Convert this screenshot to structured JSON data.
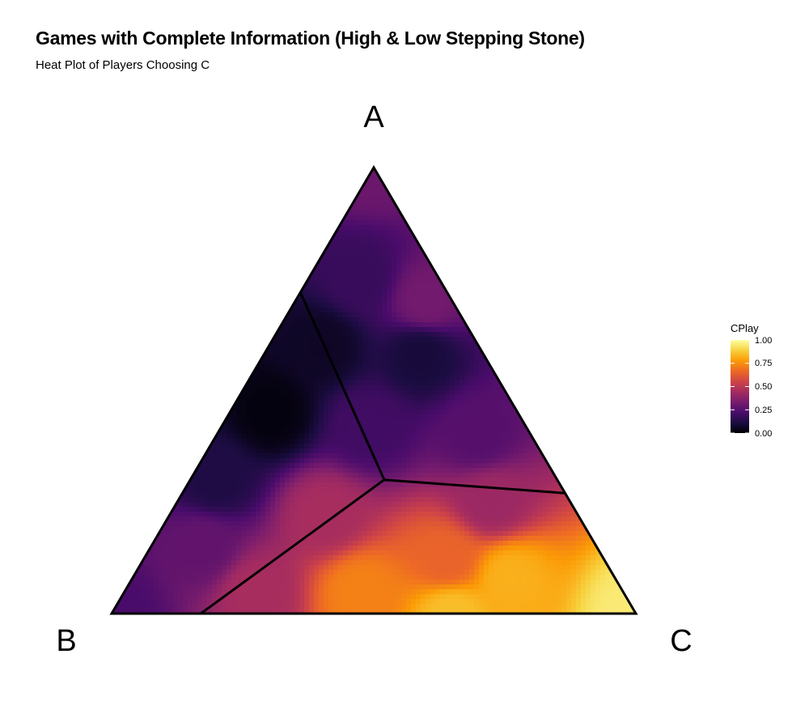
{
  "title": "Games with Complete Information (High & Low Stepping Stone)",
  "subtitle": "Heat Plot of Players Choosing C",
  "chart_data": {
    "type": "heatmap",
    "subtype": "ternary",
    "vertices": [
      "A",
      "B",
      "C"
    ],
    "legend": {
      "title": "CPlay",
      "ticks": [
        "1.00",
        "0.75",
        "0.50",
        "0.25",
        "0.00"
      ],
      "range": [
        0,
        1
      ],
      "colormap": "inferno",
      "placement": "right"
    },
    "colors": [
      "#000004",
      "#1b0c41",
      "#4a0c6b",
      "#781c6d",
      "#a52c60",
      "#cf4446",
      "#ed6925",
      "#fb9b06",
      "#f7d13d",
      "#fcffa4"
    ],
    "region_boundaries": {
      "center": {
        "A": 0.3,
        "B": 0.33,
        "C": 0.37
      },
      "ends": [
        {
          "A": 0.72,
          "B": 0.28,
          "C": 0.0
        },
        {
          "A": 0.0,
          "B": 0.83,
          "C": 0.17
        },
        {
          "A": 0.27,
          "B": 0.0,
          "C": 0.73
        }
      ]
    },
    "samples": [
      {
        "A": 1.0,
        "B": 0.0,
        "C": 0.0,
        "value": 0.3
      },
      {
        "A": 0.75,
        "B": 0.15,
        "C": 0.1,
        "value": 0.18
      },
      {
        "A": 0.7,
        "B": 0.05,
        "C": 0.25,
        "value": 0.32
      },
      {
        "A": 0.6,
        "B": 0.3,
        "C": 0.1,
        "value": 0.06
      },
      {
        "A": 0.58,
        "B": 0.12,
        "C": 0.3,
        "value": 0.1
      },
      {
        "A": 0.45,
        "B": 0.47,
        "C": 0.08,
        "value": 0.02
      },
      {
        "A": 0.42,
        "B": 0.3,
        "C": 0.28,
        "value": 0.2
      },
      {
        "A": 0.4,
        "B": 0.1,
        "C": 0.5,
        "value": 0.25
      },
      {
        "A": 0.3,
        "B": 0.65,
        "C": 0.05,
        "value": 0.12
      },
      {
        "A": 0.25,
        "B": 0.15,
        "C": 0.6,
        "value": 0.42
      },
      {
        "A": 0.22,
        "B": 0.48,
        "C": 0.3,
        "value": 0.45
      },
      {
        "A": 0.15,
        "B": 0.75,
        "C": 0.1,
        "value": 0.28
      },
      {
        "A": 0.12,
        "B": 0.3,
        "C": 0.58,
        "value": 0.65
      },
      {
        "A": 0.0,
        "B": 1.0,
        "C": 0.0,
        "value": 0.22
      },
      {
        "A": 0.05,
        "B": 0.7,
        "C": 0.25,
        "value": 0.45
      },
      {
        "A": 0.05,
        "B": 0.5,
        "C": 0.45,
        "value": 0.72
      },
      {
        "A": 0.08,
        "B": 0.2,
        "C": 0.72,
        "value": 0.82
      },
      {
        "A": 0.0,
        "B": 0.35,
        "C": 0.65,
        "value": 0.85
      },
      {
        "A": 0.0,
        "B": 0.0,
        "C": 1.0,
        "value": 0.95
      }
    ]
  }
}
